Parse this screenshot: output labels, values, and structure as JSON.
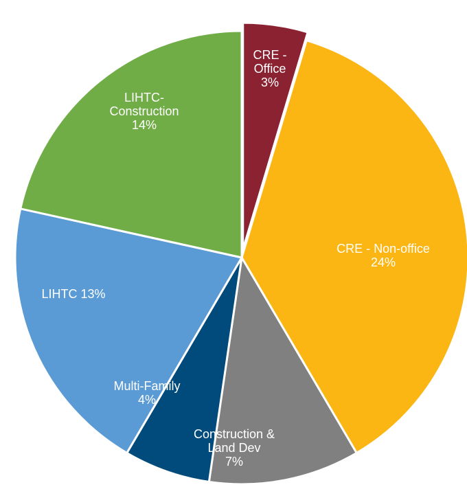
{
  "chart_data": {
    "type": "pie",
    "categories": [
      "CRE - Office",
      "CRE - Non-office",
      "Construction & Land Dev",
      "Multi-Family",
      "LIHTC",
      "LIHTC-Construction"
    ],
    "values": [
      3,
      24,
      7,
      4,
      13,
      14
    ],
    "value_labels": [
      "3%",
      "24%",
      "7%",
      "4%",
      "13%",
      "14%"
    ],
    "colors": [
      "#8b2232",
      "#fbb614",
      "#808080",
      "#004b7c",
      "#5b9bd5",
      "#70ad47"
    ]
  }
}
